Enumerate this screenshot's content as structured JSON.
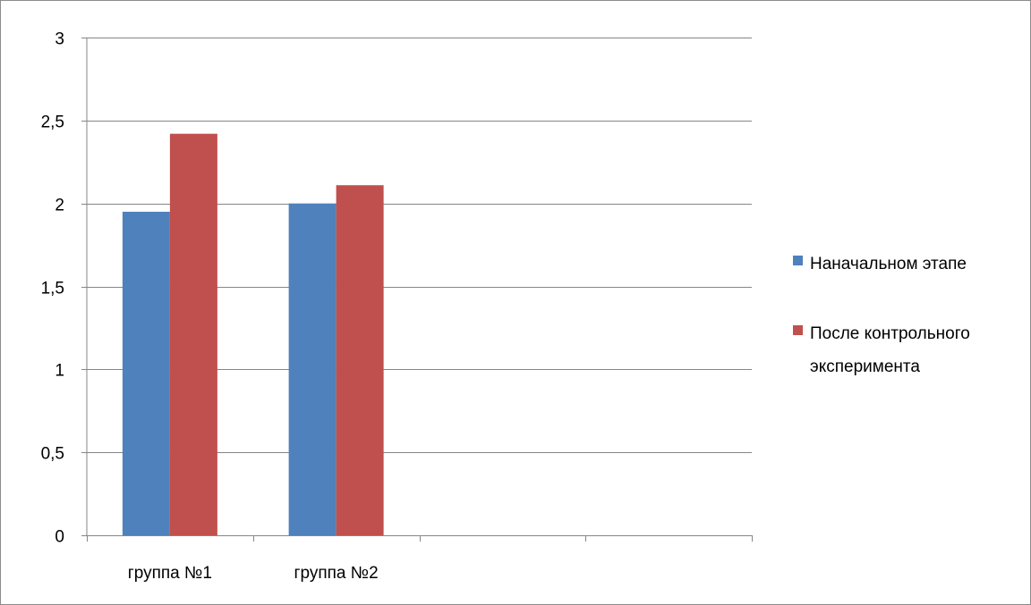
{
  "chart_data": {
    "type": "bar",
    "title": "",
    "xlabel": "",
    "ylabel": "",
    "categories": [
      "группа №1",
      "группа №2",
      "",
      ""
    ],
    "series": [
      {
        "name": "Наначальном этапе",
        "color": "#4f81bd",
        "values": [
          1.95,
          2.0,
          null,
          null
        ]
      },
      {
        "name": "После контрольного эксперимента",
        "name_lines": [
          "После контрольного",
          "эксперимента"
        ],
        "color": "#c0504d",
        "values": [
          2.42,
          2.11,
          null,
          null
        ]
      }
    ],
    "ylim": [
      0,
      3
    ],
    "yticks": [
      0,
      0.5,
      1,
      1.5,
      2,
      2.5,
      3
    ],
    "ytick_labels": [
      "0",
      "0,5",
      "1",
      "1,5",
      "2",
      "2,5",
      "3"
    ],
    "grid": true,
    "legend_position": "right"
  }
}
